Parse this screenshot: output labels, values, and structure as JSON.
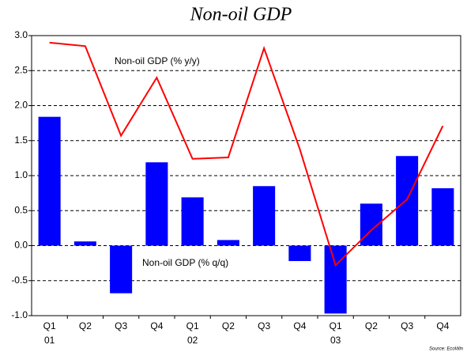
{
  "chart_data": {
    "type": "bar",
    "title": "Non-oil GDP",
    "categories": [
      "Q1",
      "Q2",
      "Q3",
      "Q4",
      "Q1",
      "Q2",
      "Q3",
      "Q4",
      "Q1",
      "Q2",
      "Q3",
      "Q4"
    ],
    "year_labels": [
      "01",
      "02",
      "03"
    ],
    "series": [
      {
        "name": "Non-oil GDP (% q/q)",
        "type": "bar",
        "color": "#0000ff",
        "values": [
          1.84,
          0.06,
          -0.68,
          1.19,
          0.69,
          0.08,
          0.85,
          -0.22,
          -0.97,
          0.6,
          1.28,
          0.82
        ]
      },
      {
        "name": "Non-oil GDP (% y/y)",
        "type": "line",
        "color": "#ff0000",
        "values": [
          2.9,
          2.85,
          1.57,
          2.4,
          1.24,
          1.26,
          2.82,
          1.38,
          -0.28,
          0.22,
          0.66,
          1.71
        ]
      }
    ],
    "ylim": [
      -1,
      3
    ],
    "yticks": [
      {
        "value": -1,
        "label": "-1.0"
      },
      {
        "value": -0.5,
        "label": "-0.5"
      },
      {
        "value": 0,
        "label": "0.0"
      },
      {
        "value": 0.5,
        "label": "0.5"
      },
      {
        "value": 1,
        "label": "1.0"
      },
      {
        "value": 1.5,
        "label": "1.5"
      },
      {
        "value": 2,
        "label": "2.0"
      },
      {
        "value": 2.5,
        "label": "2.5"
      },
      {
        "value": 3,
        "label": "3.0"
      }
    ],
    "grid": true,
    "source": "Source: EcoWin"
  }
}
